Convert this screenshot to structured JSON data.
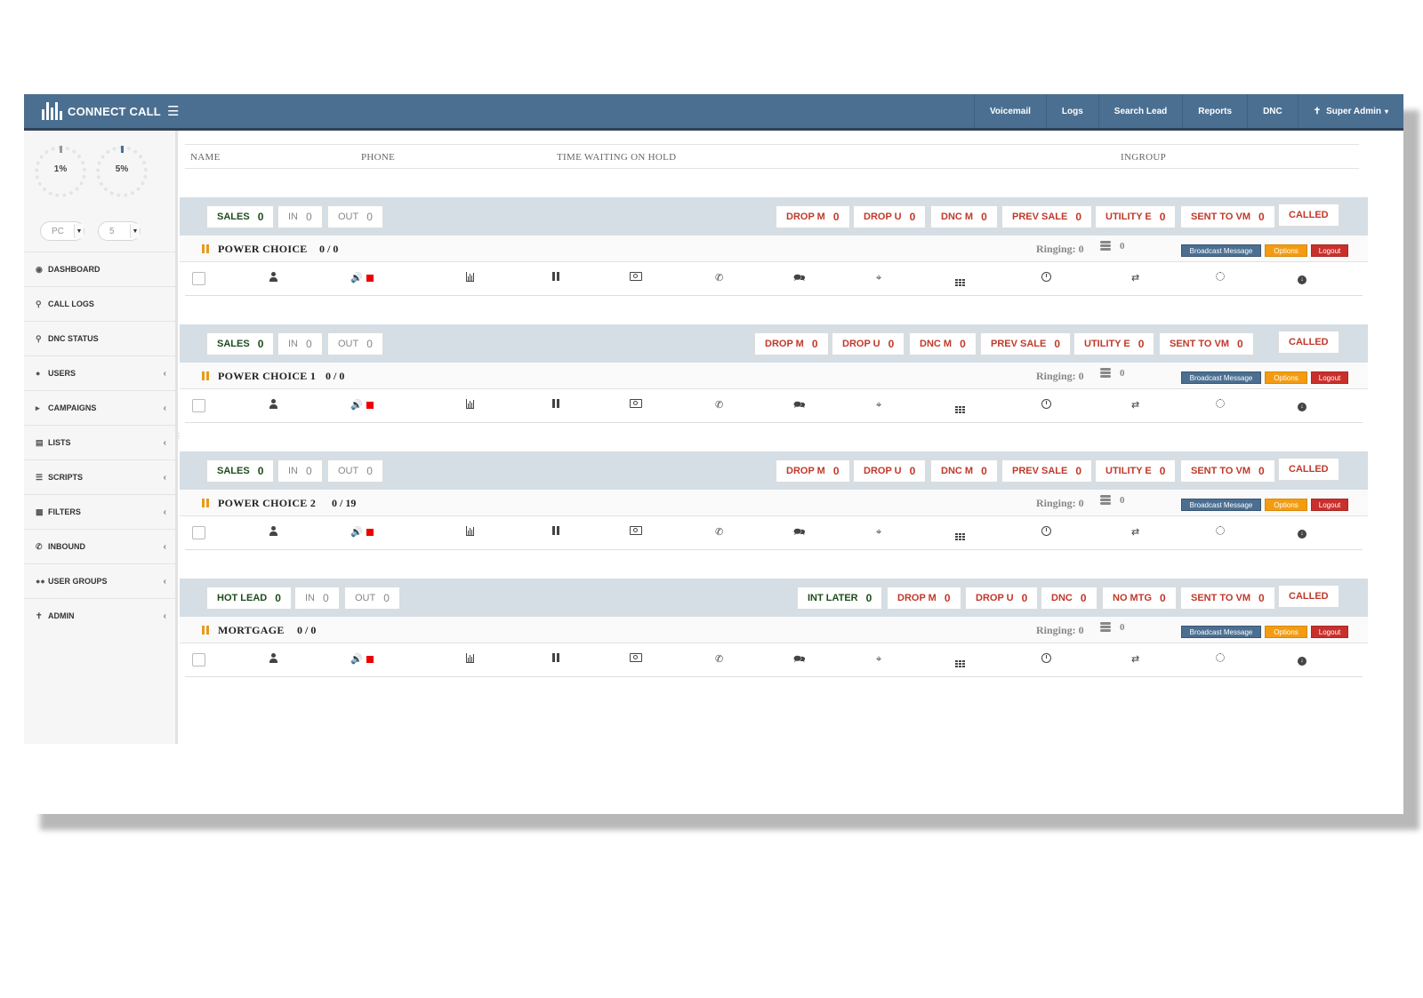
{
  "brand": {
    "name": "CONNECT CALL",
    "menu_icon": "hamburger-icon"
  },
  "topnav": [
    {
      "label": "Voicemail"
    },
    {
      "label": "Logs"
    },
    {
      "label": "Search Lead"
    },
    {
      "label": "Reports"
    },
    {
      "label": "DNC"
    },
    {
      "label": "Super Admin",
      "icon": "user-tie-icon",
      "caret": "▾"
    }
  ],
  "gauges": [
    {
      "value": "1%"
    },
    {
      "value": "5%"
    }
  ],
  "selects": [
    {
      "value": "PC"
    },
    {
      "value": "5"
    }
  ],
  "sidebar": {
    "items": [
      {
        "label": "DASHBOARD",
        "icon": "dashboard-icon"
      },
      {
        "label": "CALL LOGS",
        "icon": "search-icon"
      },
      {
        "label": "DNC STATUS",
        "icon": "search-icon"
      },
      {
        "label": "USERS",
        "icon": "user-icon",
        "chevron": "‹"
      },
      {
        "label": "CAMPAIGNS",
        "icon": "bullhorn-icon",
        "chevron": "‹"
      },
      {
        "label": "LISTS",
        "icon": "list-icon",
        "chevron": "‹"
      },
      {
        "label": "SCRIPTS",
        "icon": "list-alt-icon",
        "chevron": "‹"
      },
      {
        "label": "FILTERS",
        "icon": "file-icon",
        "chevron": "‹"
      },
      {
        "label": "INBOUND",
        "icon": "phone-icon",
        "chevron": "‹"
      },
      {
        "label": "USER GROUPS",
        "icon": "users-icon",
        "chevron": "‹"
      },
      {
        "label": "ADMIN",
        "icon": "user-tie-icon",
        "chevron": "‹"
      }
    ]
  },
  "table_header": {
    "name": "NAME",
    "phone": "PHONE",
    "time": "TIME WAITING ON HOLD",
    "ingroup": "INGROUP"
  },
  "campaigns": [
    {
      "chips": [
        {
          "label": "SALES",
          "value": "0"
        },
        {
          "label": "IN",
          "value": "0"
        },
        {
          "label": "OUT",
          "value": "0"
        },
        {
          "label": "DROP M",
          "value": "0"
        },
        {
          "label": "DROP U",
          "value": "0"
        },
        {
          "label": "DNC M",
          "value": "0"
        },
        {
          "label": "PREV SALE",
          "value": "0"
        },
        {
          "label": "UTILITY E",
          "value": "0"
        },
        {
          "label": "SENT TO VM",
          "value": "0"
        },
        {
          "label": "CALLED"
        }
      ],
      "name": "POWER CHOICE",
      "ratio": "0 / 0",
      "ringing": "Ringing: 0",
      "queued": "0",
      "buttons": {
        "broadcast": "Broadcast Message",
        "options": "Options",
        "logout": "Logout"
      }
    },
    {
      "chips": [
        {
          "label": "SALES",
          "value": "0"
        },
        {
          "label": "IN",
          "value": "0"
        },
        {
          "label": "OUT",
          "value": "0"
        },
        {
          "label": "DROP M",
          "value": "0"
        },
        {
          "label": "DROP U",
          "value": "0"
        },
        {
          "label": "DNC M",
          "value": "0"
        },
        {
          "label": "PREV SALE",
          "value": "0"
        },
        {
          "label": "UTILITY E",
          "value": "0"
        },
        {
          "label": "SENT TO VM",
          "value": "0"
        },
        {
          "label": "CALLED"
        }
      ],
      "name": "POWER CHOICE 1",
      "ratio": "0 / 0",
      "ringing": "Ringing: 0",
      "queued": "0",
      "buttons": {
        "broadcast": "Broadcast Message",
        "options": "Options",
        "logout": "Logout"
      }
    },
    {
      "chips": [
        {
          "label": "SALES",
          "value": "0"
        },
        {
          "label": "IN",
          "value": "0"
        },
        {
          "label": "OUT",
          "value": "0"
        },
        {
          "label": "DROP M",
          "value": "0"
        },
        {
          "label": "DROP U",
          "value": "0"
        },
        {
          "label": "DNC M",
          "value": "0"
        },
        {
          "label": "PREV SALE",
          "value": "0"
        },
        {
          "label": "UTILITY E",
          "value": "0"
        },
        {
          "label": "SENT TO VM",
          "value": "0"
        },
        {
          "label": "CALLED"
        }
      ],
      "name": "POWER CHOICE 2",
      "ratio": "0 / 19",
      "ringing": "Ringing: 0",
      "queued": "0",
      "buttons": {
        "broadcast": "Broadcast Message",
        "options": "Options",
        "logout": "Logout"
      }
    },
    {
      "chips": [
        {
          "label": "HOT LEAD",
          "value": "0"
        },
        {
          "label": "IN",
          "value": "0"
        },
        {
          "label": "OUT",
          "value": "0"
        },
        {
          "label": "INT LATER",
          "value": "0"
        },
        {
          "label": "DROP M",
          "value": "0"
        },
        {
          "label": "DROP U",
          "value": "0"
        },
        {
          "label": "DNC",
          "value": "0"
        },
        {
          "label": "NO MTG",
          "value": "0"
        },
        {
          "label": "SENT TO VM",
          "value": "0"
        },
        {
          "label": "CALLED"
        }
      ],
      "name": "MORTGAGE",
      "ratio": "0 / 0",
      "ringing": "Ringing: 0",
      "queued": "0",
      "buttons": {
        "broadcast": "Broadcast Message",
        "options": "Options",
        "logout": "Logout"
      }
    }
  ],
  "row_icons": [
    "user-icon",
    "volume-icon",
    "bar-chart-icon",
    "pause-icon",
    "money-icon",
    "phone-icon",
    "comments-icon",
    "crosshairs-icon",
    "grid-icon",
    "clock-icon",
    "random-icon",
    "circle-dashed-icon",
    "download-icon"
  ],
  "colors": {
    "header": "#4b6f91",
    "statbar": "#d5dee4",
    "green": "#1d4d1d",
    "red": "#c0392b",
    "orange": "#f39c12"
  }
}
